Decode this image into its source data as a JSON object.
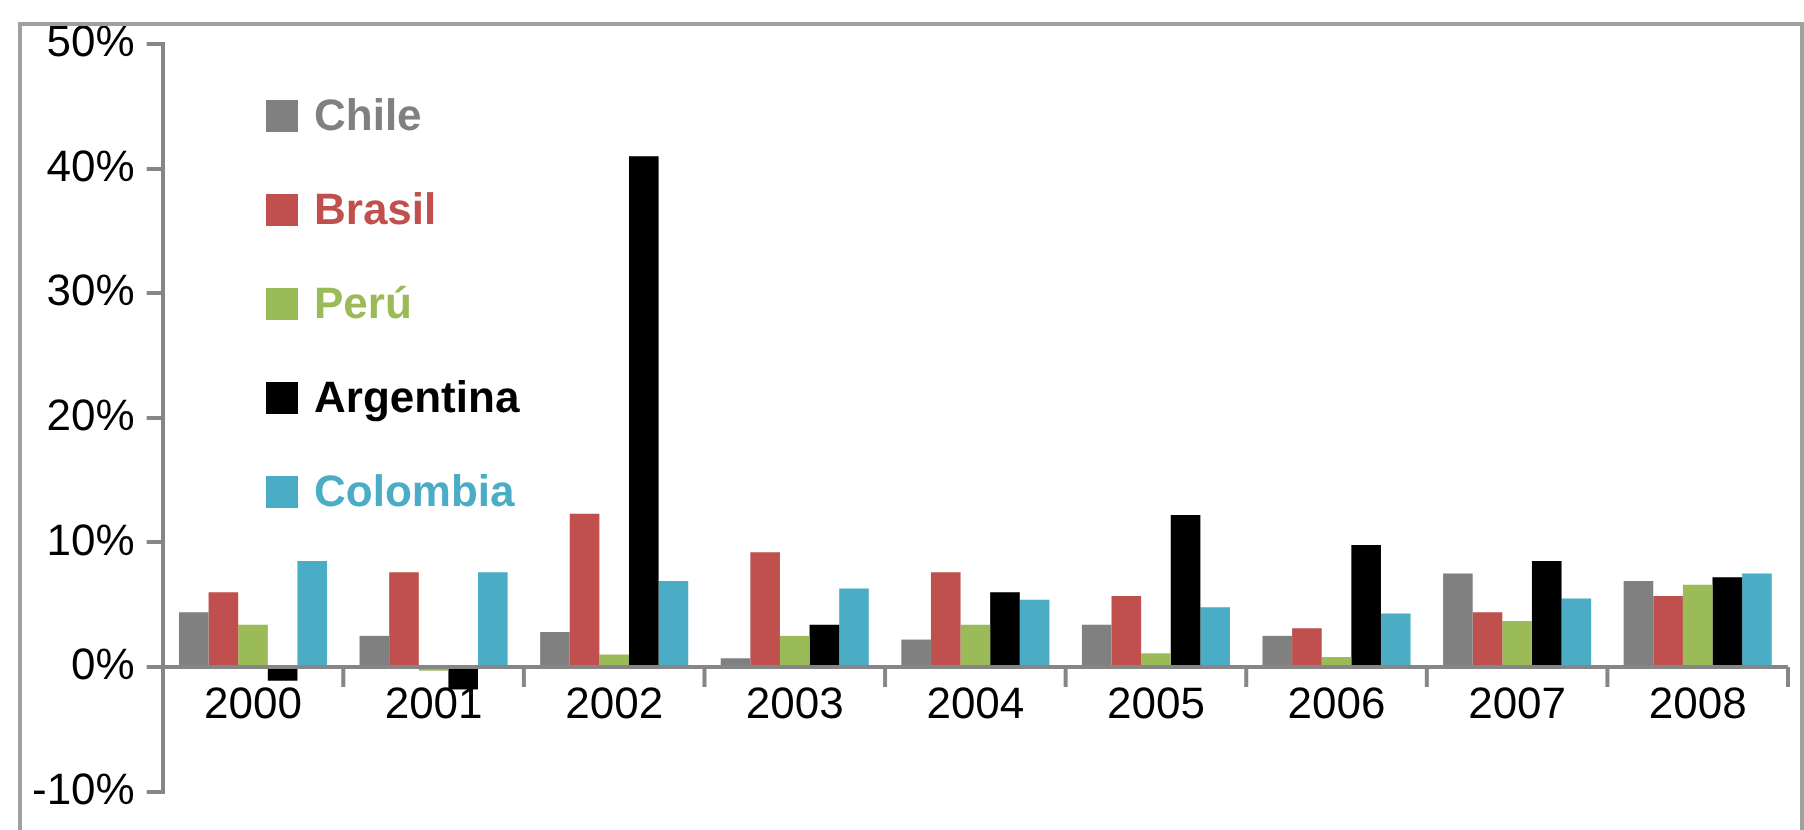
{
  "chart_data": {
    "type": "bar",
    "categories": [
      "2000",
      "2001",
      "2002",
      "2003",
      "2004",
      "2005",
      "2006",
      "2007",
      "2008"
    ],
    "series": [
      {
        "name": "Chile",
        "color": "#808080",
        "values": [
          4.4,
          2.5,
          2.8,
          0.7,
          2.2,
          3.4,
          2.5,
          7.5,
          6.9
        ]
      },
      {
        "name": "Brasil",
        "color": "#c0504d",
        "values": [
          6.0,
          7.6,
          12.3,
          9.2,
          7.6,
          5.7,
          3.1,
          4.4,
          5.7
        ]
      },
      {
        "name": "Perú",
        "color": "#9bbb59",
        "values": [
          3.4,
          -0.3,
          1.0,
          2.5,
          3.4,
          1.1,
          0.8,
          3.7,
          6.6
        ]
      },
      {
        "name": "Argentina",
        "color": "#000000",
        "values": [
          -1.1,
          -1.8,
          41,
          3.4,
          6.0,
          12.2,
          9.8,
          8.5,
          7.2
        ]
      },
      {
        "name": "Colombia",
        "color": "#4bacc6",
        "values": [
          8.5,
          7.6,
          6.9,
          6.3,
          5.4,
          4.8,
          4.3,
          5.5,
          7.5
        ]
      }
    ],
    "ylim": [
      -10,
      50
    ],
    "yticks": [
      {
        "value": -10,
        "label": "-10%"
      },
      {
        "value": 0,
        "label": "0%"
      },
      {
        "value": 10,
        "label": "10%"
      },
      {
        "value": 20,
        "label": "20%"
      },
      {
        "value": 30,
        "label": "30%"
      },
      {
        "value": 40,
        "label": "40%"
      },
      {
        "value": 50,
        "label": "50%"
      }
    ],
    "grid": false,
    "legend": "top left"
  }
}
